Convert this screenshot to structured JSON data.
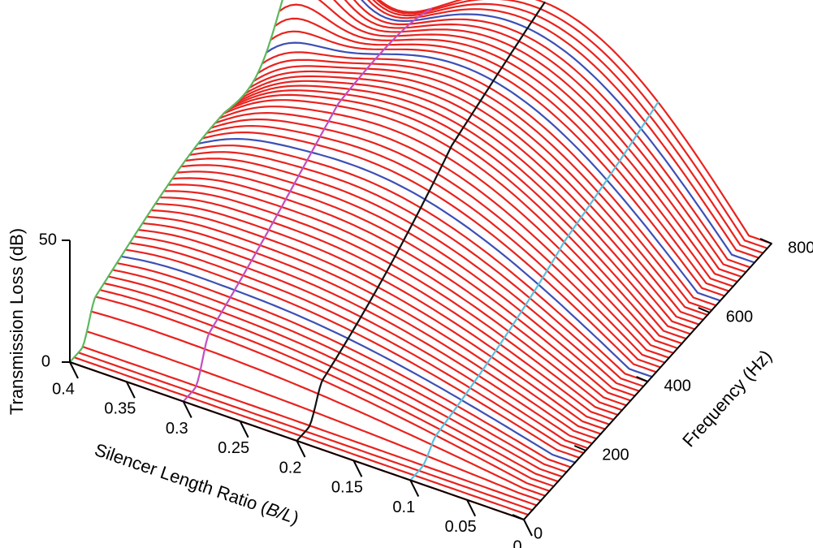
{
  "chart_data": {
    "type": "surface-3d",
    "zlabel": "Transmission Loss (dB)",
    "xlabel_prefix": "Silencer Length Ratio (",
    "xlabel_var": "B/L",
    "xlabel_suffix": ")",
    "ylabel": "Frequency (Hz)",
    "z_ticks": [
      "0",
      "50"
    ],
    "x_ticks": [
      "0.4",
      "0.35",
      "0.3",
      "0.25",
      "0.2",
      "0.15",
      "0.1",
      "0.05",
      "0"
    ],
    "y_ticks": [
      "0",
      "200",
      "400",
      "600",
      "800"
    ],
    "x_range": [
      0,
      0.4
    ],
    "y_range": [
      0,
      800
    ],
    "z_range": [
      0,
      50
    ],
    "surface_color": "#e8231f",
    "highlight_colors": {
      "ratio_0_4": "#5cb85c",
      "ratio_0_3": "#c24fbf",
      "ratio_0_2": "#111111",
      "ratio_0_1": "#5bc0de",
      "frequency_lines": "#3e4fb5"
    }
  }
}
